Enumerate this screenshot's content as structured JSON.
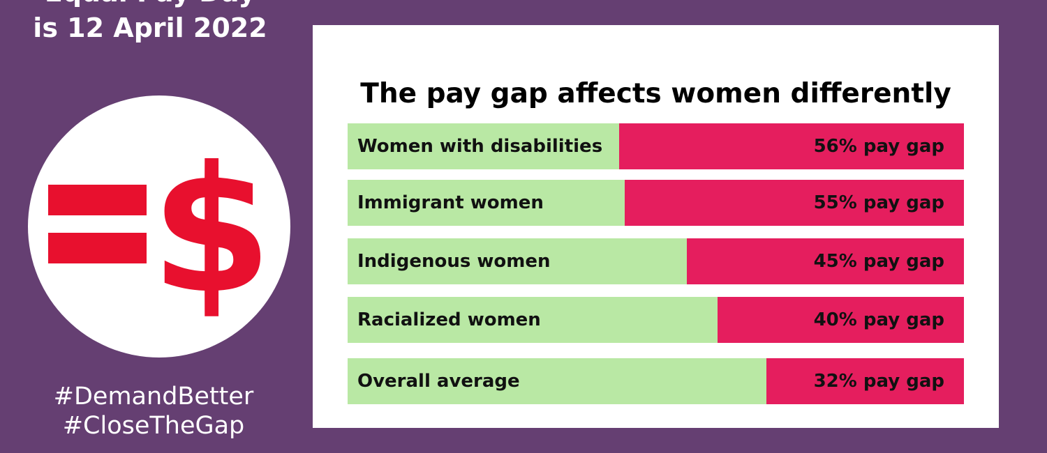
{
  "headline": {
    "line1": "Equal Pay Day",
    "line2": "is 12 April 2022"
  },
  "logo": {
    "icon": "equals-dollar-icon",
    "background": "#ffffff",
    "color": "#e8102e"
  },
  "hashtags": [
    "#DemandBetter",
    "#CloseTheGap"
  ],
  "colors": {
    "page_background": "#653f72",
    "card_background": "#ffffff",
    "bar_remaining": "#b9e8a4",
    "bar_gap": "#e51e5e"
  },
  "chart_data": {
    "type": "bar",
    "orientation": "horizontal",
    "stacked": true,
    "title": "The pay gap affects women differently",
    "categories": [
      "Women with disabilities",
      "Immigrant women",
      "Indigenous women",
      "Racialized women",
      "Overall average"
    ],
    "values": [
      56,
      55,
      45,
      40,
      32
    ],
    "value_labels": [
      "56% pay gap",
      "55% pay gap",
      "45% pay gap",
      "40% pay gap",
      "32% pay gap"
    ],
    "unit": "%",
    "xlim": [
      0,
      100
    ]
  }
}
